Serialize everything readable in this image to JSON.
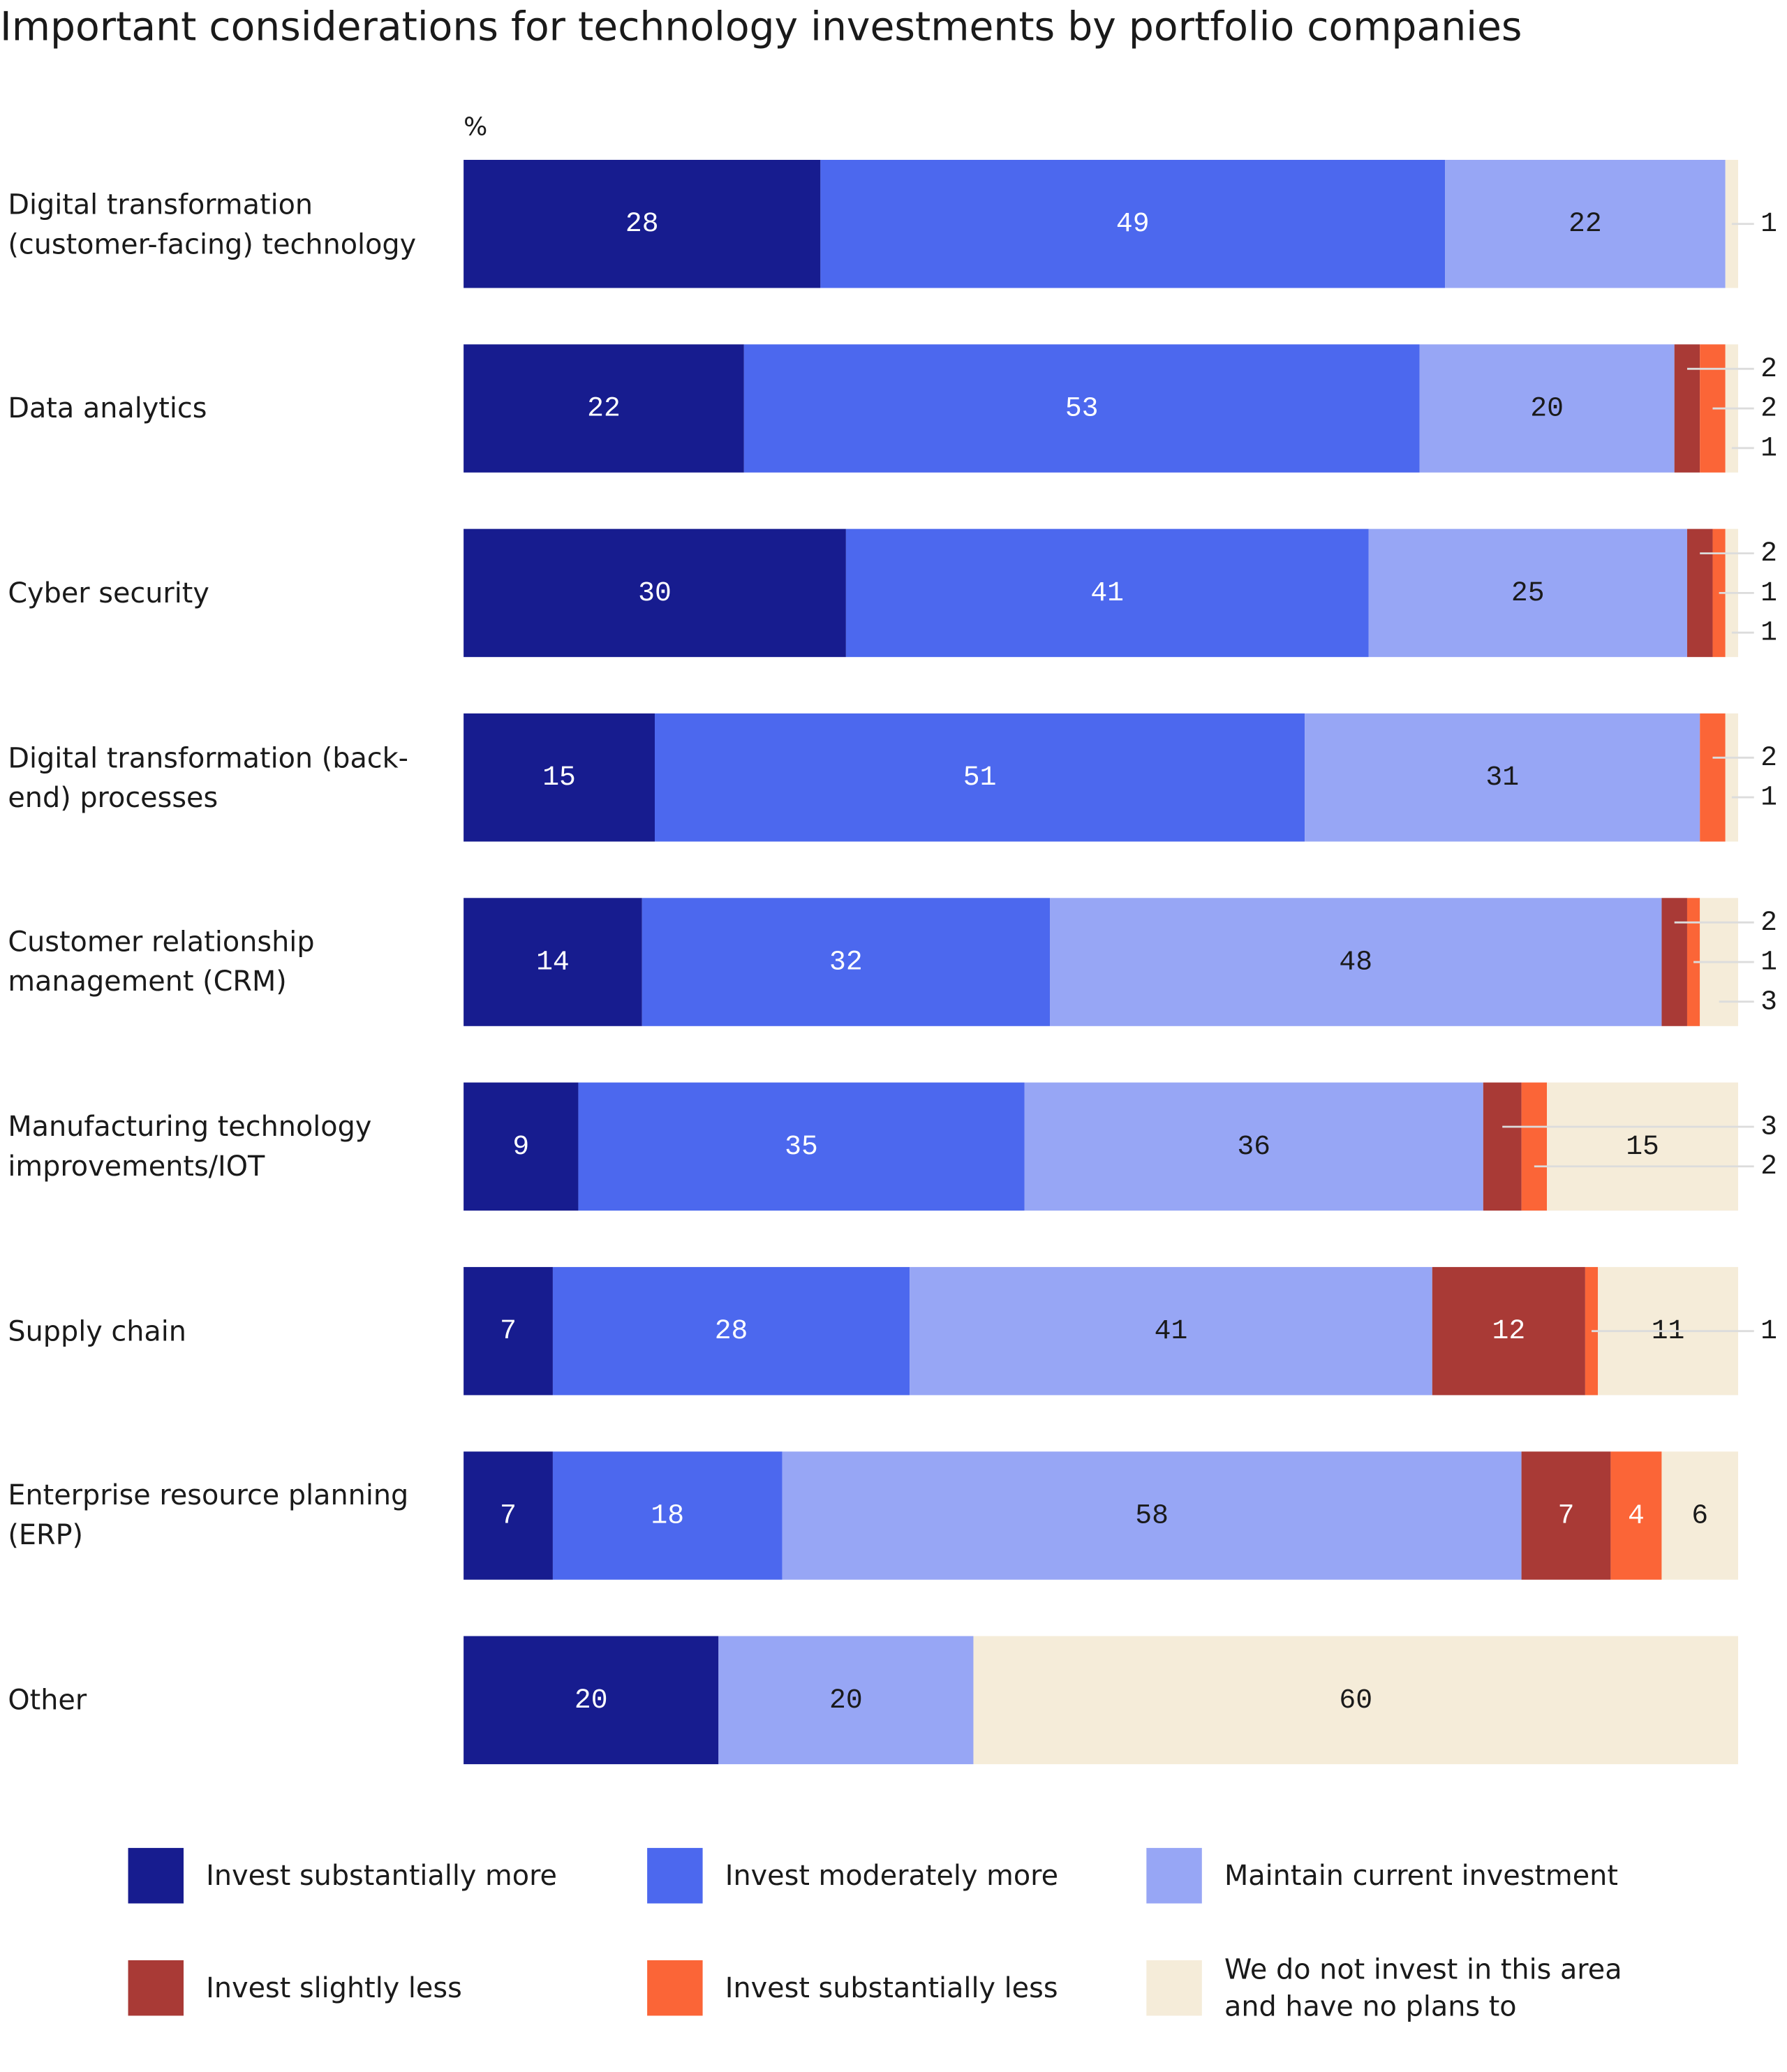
{
  "chart_data": {
    "type": "stacked-bar-horizontal",
    "title": "Important considerations for technology investments by portfolio companies",
    "unit_label": "%",
    "xlim": [
      0,
      100
    ],
    "categories": [
      "Digital transformation (customer-facing) technology",
      "Data analytics",
      "Cyber security",
      "Digital transformation (back-end) processes",
      "Customer relationship management (CRM)",
      "Manufacturing technology improvements/IOT",
      "Supply chain",
      "Enterprise resource planning (ERP)",
      "Other"
    ],
    "series": [
      {
        "name": "Invest substantially more",
        "color": "#171c8f",
        "values": [
          28,
          22,
          30,
          15,
          14,
          9,
          7,
          7,
          20
        ]
      },
      {
        "name": "Invest moderately more",
        "color": "#4c68ee",
        "values": [
          49,
          53,
          41,
          51,
          32,
          35,
          28,
          18,
          null
        ]
      },
      {
        "name": "Maintain current investment",
        "color": "#97a6f5",
        "values": [
          22,
          20,
          25,
          31,
          48,
          36,
          41,
          58,
          20
        ]
      },
      {
        "name": "Invest slightly less",
        "color": "#a93a36",
        "values": [
          null,
          2,
          2,
          null,
          2,
          3,
          12,
          7,
          null
        ]
      },
      {
        "name": "Invest substantially less",
        "color": "#fb6537",
        "values": [
          null,
          2,
          1,
          2,
          1,
          2,
          1,
          4,
          null
        ]
      },
      {
        "name": "We do not invest in this area and have no plans to",
        "color": "#f5ecd9",
        "values": [
          1,
          1,
          1,
          1,
          3,
          15,
          11,
          6,
          60
        ]
      }
    ]
  }
}
